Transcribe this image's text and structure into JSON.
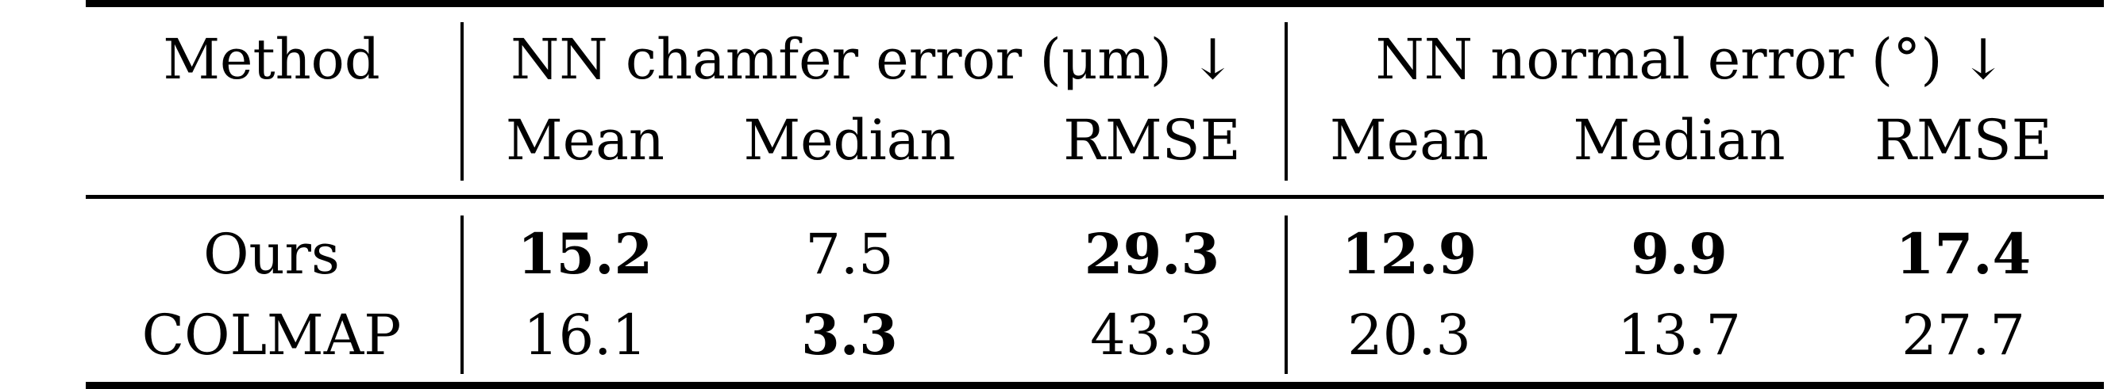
{
  "table": {
    "header": {
      "method": "Method",
      "group1": "NN chamfer error (μm) ↓",
      "group2": "NN normal error (°) ↓",
      "subcolumns": [
        "Mean",
        "Median",
        "RMSE",
        "Mean",
        "Median",
        "RMSE"
      ]
    },
    "rows": [
      {
        "method": "Ours",
        "values": [
          "15.2",
          "7.5",
          "29.3",
          "12.9",
          "9.9",
          "17.4"
        ],
        "bold": [
          true,
          false,
          true,
          true,
          true,
          true
        ]
      },
      {
        "method": "COLMAP",
        "values": [
          "16.1",
          "3.3",
          "43.3",
          "20.3",
          "13.7",
          "27.7"
        ],
        "bold": [
          false,
          true,
          false,
          false,
          false,
          false
        ]
      }
    ]
  }
}
